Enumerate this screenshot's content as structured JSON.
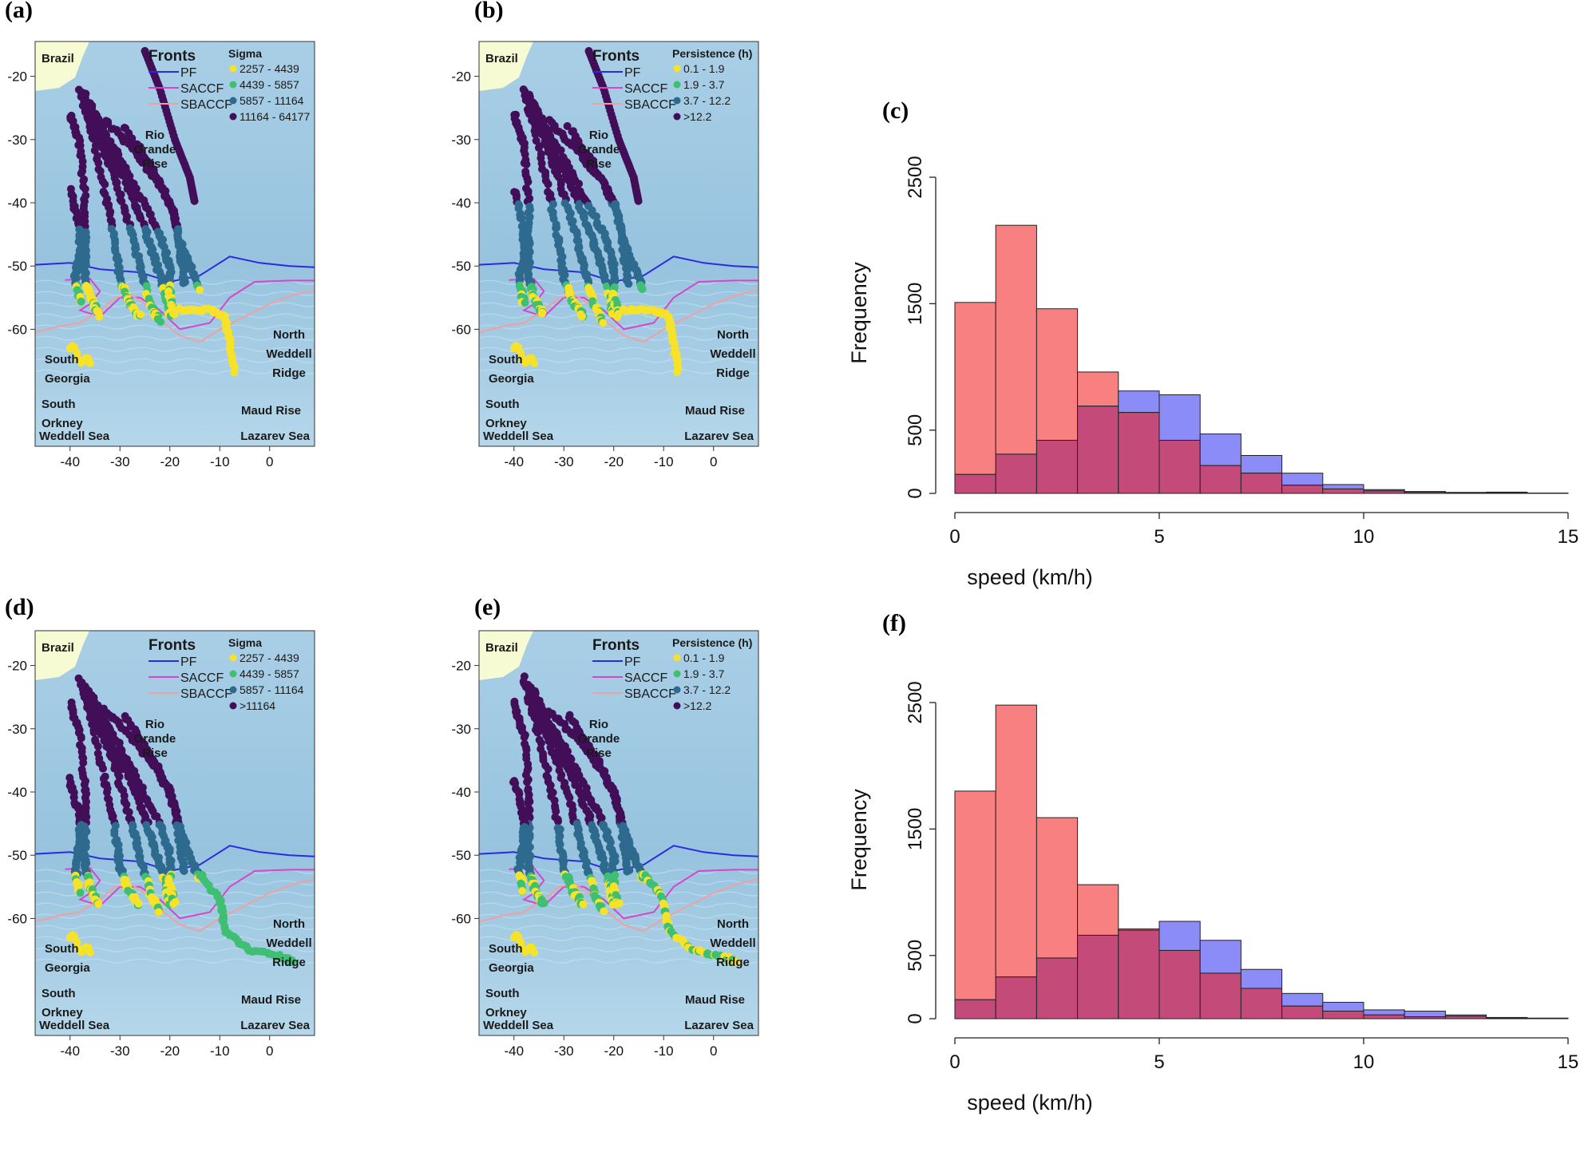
{
  "figure": {
    "panels": {
      "a": {
        "label": "(a)",
        "legend_title": "Sigma",
        "classes": [
          "2257 - 4439",
          "4439 - 5857",
          "5857 - 11164",
          "11164 - 64177"
        ]
      },
      "b": {
        "label": "(b)",
        "legend_title": "Persistence (h)",
        "classes": [
          "0.1 - 1.9",
          "1.9 - 3.7",
          "3.7 - 12.2",
          ">12.2"
        ]
      },
      "c": {
        "label": "(c)"
      },
      "d": {
        "label": "(d)",
        "legend_title": "Sigma",
        "classes": [
          "2257 - 4439",
          "4439 - 5857",
          "5857 - 11164",
          ">11164"
        ]
      },
      "e": {
        "label": "(e)",
        "legend_title": "Persistence (h)",
        "classes": [
          "0.1 - 1.9",
          "1.9 - 3.7",
          "3.7 - 12.2",
          ">12.2"
        ]
      },
      "f": {
        "label": "(f)"
      }
    },
    "fronts": {
      "title": "Fronts",
      "items": [
        "PF",
        "SACCF",
        "SBACCF"
      ]
    },
    "places": {
      "brazil": "Brazil",
      "rio": [
        "Rio",
        "Grande",
        "Rise"
      ],
      "south_georgia": [
        "South",
        "Georgia"
      ],
      "north_weddell": [
        "North",
        "Weddell",
        "Ridge"
      ],
      "south_orkney": [
        "South",
        "Orkney"
      ],
      "maud": "Maud Rise",
      "weddell_sea": "Weddell Sea",
      "lazarev_sea": "Lazarev Sea"
    },
    "map_axis": {
      "lat_ticks": [
        "-20",
        "-30",
        "-40",
        "-50",
        "-60"
      ],
      "lon_ticks": [
        "-40",
        "-30",
        "-20",
        "-10",
        "0"
      ]
    }
  },
  "colors": {
    "class_colors": [
      "#f7e22a",
      "#3fbf72",
      "#2e6a8e",
      "#430e58"
    ],
    "pf": "#2a2ae0",
    "saccf": "#d845c8",
    "sbaccf": "#f0a0a0",
    "ocean": "#9cc6e0",
    "land": "#f7fbd4",
    "hist_red": "#f88080",
    "hist_blue": "#8c8cf8",
    "hist_overlap": "#c44a7a"
  },
  "chart_data": [
    {
      "type": "bar",
      "panel": "c",
      "title": "",
      "xlabel": "speed (km/h)",
      "ylabel": "Frequency",
      "xlim": [
        0,
        15
      ],
      "ylim": [
        0,
        2500
      ],
      "x_ticks": [
        0,
        5,
        10,
        15
      ],
      "y_ticks": [
        0,
        500,
        1500,
        2500
      ],
      "bin_edges": [
        0,
        1,
        2,
        3,
        4,
        5,
        6,
        7,
        8,
        9,
        10,
        11,
        12,
        13,
        14,
        15
      ],
      "series": [
        {
          "name": "red",
          "values": [
            1510,
            2120,
            1460,
            960,
            640,
            420,
            220,
            160,
            65,
            35,
            20,
            10,
            5,
            10,
            3
          ]
        },
        {
          "name": "blue",
          "values": [
            150,
            310,
            420,
            690,
            810,
            780,
            470,
            300,
            160,
            70,
            30,
            15,
            8,
            5,
            3
          ]
        }
      ]
    },
    {
      "type": "bar",
      "panel": "f",
      "title": "",
      "xlabel": "speed (km/h)",
      "ylabel": "Frequency",
      "xlim": [
        0,
        15
      ],
      "ylim": [
        0,
        2500
      ],
      "x_ticks": [
        0,
        5,
        10,
        15
      ],
      "y_ticks": [
        0,
        500,
        1500,
        2500
      ],
      "bin_edges": [
        0,
        1,
        2,
        3,
        4,
        5,
        6,
        7,
        8,
        9,
        10,
        11,
        12,
        13,
        14,
        15
      ],
      "series": [
        {
          "name": "red",
          "values": [
            1800,
            2480,
            1590,
            1060,
            710,
            540,
            360,
            240,
            100,
            60,
            30,
            15,
            20,
            5,
            2
          ]
        },
        {
          "name": "blue",
          "values": [
            150,
            330,
            480,
            660,
            700,
            770,
            620,
            390,
            200,
            130,
            70,
            60,
            30,
            10,
            5
          ]
        }
      ]
    }
  ]
}
